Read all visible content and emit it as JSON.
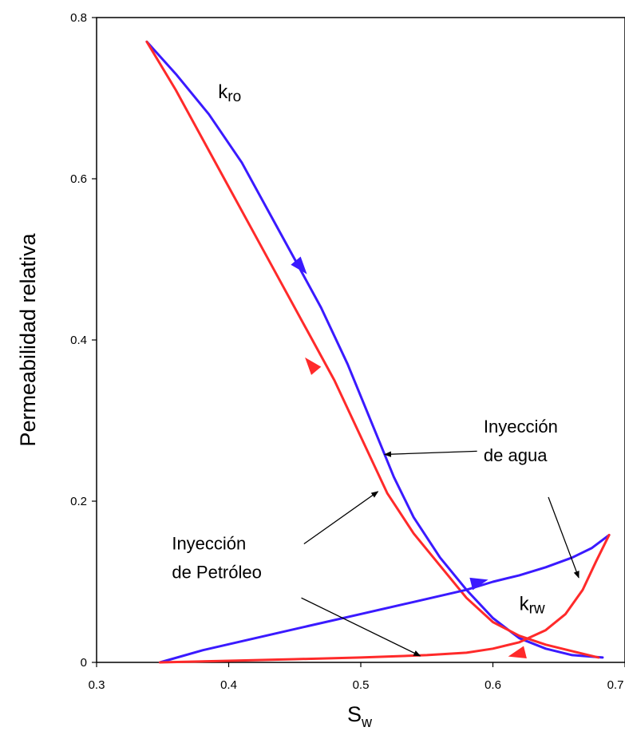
{
  "chart_data": {
    "type": "line",
    "title": "",
    "xlabel": {
      "main": "S",
      "sub": "w"
    },
    "ylabel": "Permeabilidad relativa",
    "xlim": [
      0.3,
      0.7
    ],
    "ylim": [
      0,
      0.8
    ],
    "xticks": [
      "0.3",
      "0.4",
      "0.5",
      "0.6",
      "0.7"
    ],
    "yticks": [
      "0",
      "0.2",
      "0.4",
      "0.6",
      "0.8"
    ],
    "grid": false,
    "legend": "none",
    "colors": {
      "drainage": "#ff2a2a",
      "imbibition": "#3a1aff",
      "frame": "#000000",
      "annotation": "#000000"
    },
    "series": [
      {
        "color_key": "imbibition",
        "x": [
          0.338,
          0.36,
          0.385,
          0.41,
          0.43,
          0.45,
          0.47,
          0.49,
          0.51,
          0.525,
          0.54,
          0.56,
          0.58,
          0.6,
          0.62,
          0.64,
          0.66,
          0.683
        ],
        "y": [
          0.77,
          0.73,
          0.68,
          0.62,
          0.56,
          0.5,
          0.44,
          0.37,
          0.29,
          0.23,
          0.18,
          0.13,
          0.09,
          0.055,
          0.03,
          0.017,
          0.009,
          0.006
        ]
      },
      {
        "color_key": "drainage",
        "x": [
          0.338,
          0.36,
          0.38,
          0.4,
          0.42,
          0.44,
          0.46,
          0.48,
          0.5,
          0.52,
          0.54,
          0.56,
          0.58,
          0.6,
          0.62,
          0.64,
          0.66,
          0.68
        ],
        "y": [
          0.77,
          0.71,
          0.65,
          0.59,
          0.53,
          0.47,
          0.41,
          0.35,
          0.28,
          0.21,
          0.16,
          0.12,
          0.08,
          0.05,
          0.033,
          0.022,
          0.014,
          0.006
        ]
      },
      {
        "color_key": "imbibition",
        "x": [
          0.348,
          0.38,
          0.42,
          0.46,
          0.5,
          0.54,
          0.58,
          0.6,
          0.62,
          0.64,
          0.66,
          0.675,
          0.688
        ],
        "y": [
          0.0,
          0.015,
          0.03,
          0.045,
          0.06,
          0.075,
          0.09,
          0.1,
          0.108,
          0.118,
          0.13,
          0.142,
          0.158
        ]
      },
      {
        "color_key": "drainage",
        "x": [
          0.348,
          0.4,
          0.45,
          0.5,
          0.55,
          0.58,
          0.6,
          0.62,
          0.64,
          0.655,
          0.668,
          0.678,
          0.688
        ],
        "y": [
          0.0,
          0.002,
          0.004,
          0.006,
          0.009,
          0.012,
          0.017,
          0.025,
          0.04,
          0.06,
          0.09,
          0.125,
          0.158
        ]
      }
    ],
    "direction_arrows": [
      {
        "color_key": "imbibition",
        "x": 0.455,
        "y": 0.49,
        "dx": 1,
        "dy": -1.2
      },
      {
        "color_key": "drainage",
        "x": 0.462,
        "y": 0.37,
        "dx": -1,
        "dy": 1.2
      },
      {
        "color_key": "imbibition",
        "x": 0.59,
        "y": 0.1,
        "dx": 1,
        "dy": 0.25
      },
      {
        "color_key": "drainage",
        "x": 0.618,
        "y": 0.01,
        "dx": -1,
        "dy": -0.25
      }
    ],
    "curve_labels": [
      {
        "text": "k",
        "sub": "ro",
        "x": 0.392,
        "y": 0.7
      },
      {
        "text": "k",
        "sub": "rw",
        "x": 0.62,
        "y": 0.065
      }
    ],
    "annotations": [
      {
        "lines": [
          "Inyección",
          "de agua"
        ],
        "x": 0.593,
        "y": 0.285,
        "anchor": "start",
        "pointers": [
          {
            "from": [
              0.588,
              0.262
            ],
            "to": [
              0.518,
              0.258
            ]
          },
          {
            "from": [
              0.642,
              0.205
            ],
            "to": [
              0.665,
              0.105
            ]
          }
        ]
      },
      {
        "lines": [
          "Inyección",
          "de Petróleo"
        ],
        "x": 0.357,
        "y": 0.14,
        "anchor": "start",
        "pointers": [
          {
            "from": [
              0.457,
              0.147
            ],
            "to": [
              0.513,
              0.212
            ]
          },
          {
            "from": [
              0.455,
              0.08
            ],
            "to": [
              0.545,
              0.008
            ]
          }
        ]
      }
    ]
  }
}
